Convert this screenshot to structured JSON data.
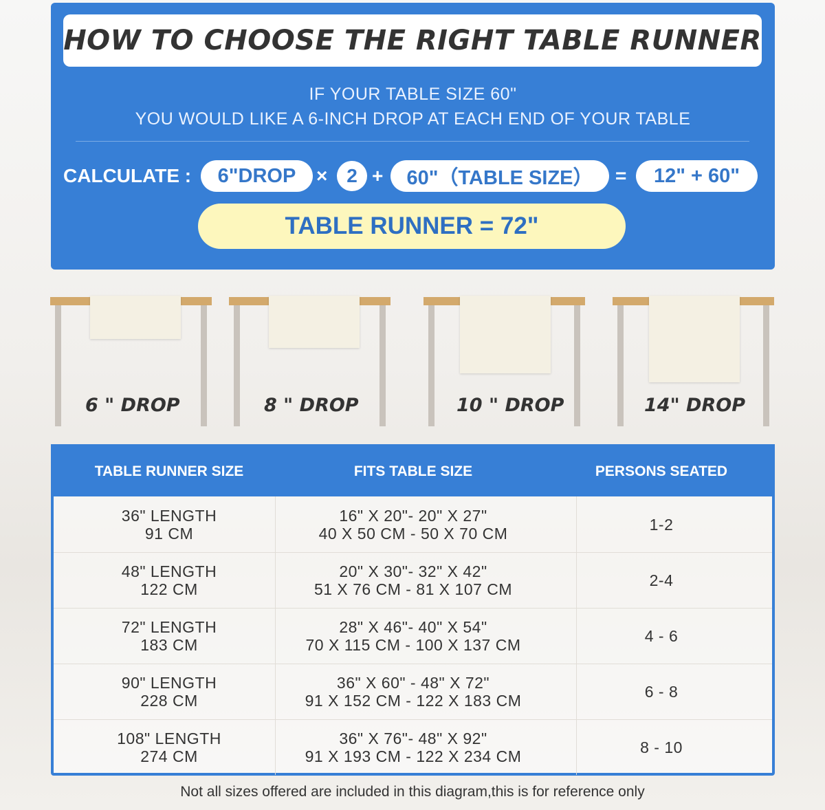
{
  "header": {
    "title": "HOW TO CHOOSE THE RIGHT TABLE RUNNER"
  },
  "intro": {
    "lines": [
      "IF YOUR TABLE SIZE 60\"",
      "YOU WOULD LIKE A 6-INCH DROP AT EACH END OF YOUR TABLE"
    ]
  },
  "calc": {
    "label": "CALCULATE :",
    "drop": "6\"DROP",
    "times": "×",
    "factor": "2",
    "plus": "+",
    "table_size": "60\"（TABLE SIZE）",
    "equals": "=",
    "result": "12\" + 60\"",
    "total": "TABLE RUNNER = 72\""
  },
  "drops": {
    "labels": [
      "6 \" DROP",
      "8 \" DROP",
      "10 \" DROP",
      "14\" DROP"
    ]
  },
  "table": {
    "headers": [
      "TABLE RUNNER SIZE",
      "FITS TABLE SIZE",
      "PERSONS SEATED"
    ],
    "rows": [
      [
        [
          "36\" LENGTH",
          "91 CM"
        ],
        [
          "16\" X 20\"- 20\" X 27\"",
          "40 X 50 CM - 50 X 70 CM"
        ],
        "1-2"
      ],
      [
        [
          "48\" LENGTH",
          "122 CM"
        ],
        [
          "20\" X 30\"- 32\" X 42\"",
          "51 X 76 CM - 81 X 107 CM"
        ],
        "2-4"
      ],
      [
        [
          "72\" LENGTH",
          "183 CM"
        ],
        [
          "28\" X 46\"- 40\" X 54\"",
          "70 X 115 CM - 100 X 137 CM"
        ],
        "4 - 6"
      ],
      [
        [
          "90\" LENGTH",
          "228 CM"
        ],
        [
          "36\" X 60\" - 48\" X 72\"",
          "91 X 152 CM - 122 X 183 CM"
        ],
        "6 - 8"
      ],
      [
        [
          "108\" LENGTH",
          "274 CM"
        ],
        [
          "36\" X 76\"- 48\" X 92\"",
          "91 X 193 CM - 122 X 234 CM"
        ],
        "8 - 10"
      ]
    ]
  },
  "footnote": "Not all sizes offered are included in this diagram,this is for reference only"
}
